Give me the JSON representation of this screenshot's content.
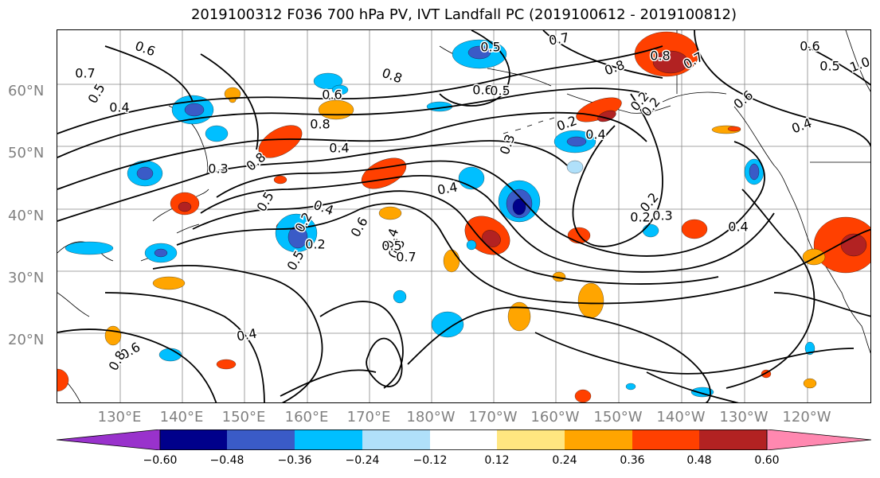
{
  "title": "2019100312 F036 700 hPa PV, IVT Landfall PC (2019100612 - 2019100812)",
  "lat_labels": [
    "60°N",
    "50°N",
    "40°N",
    "30°N",
    "20°N"
  ],
  "lon_labels": [
    "130°E",
    "140°E",
    "150°E",
    "160°E",
    "170°E",
    "180°W",
    "170°W",
    "160°W",
    "150°W",
    "140°W",
    "130°W",
    "120°W"
  ],
  "colorbar": {
    "colors": [
      "#9932cc",
      "#00008b",
      "#3a5bc7",
      "#00bfff",
      "#b0e0fa",
      "#ffffff",
      "#ffe680",
      "#ffa500",
      "#ff4000",
      "#b22222",
      "#ff88b0"
    ],
    "tick_labels": [
      "−0.60",
      "−0.48",
      "−0.36",
      "−0.24",
      "−0.12",
      "0.12",
      "0.24",
      "0.36",
      "0.48",
      "0.60"
    ]
  },
  "contour_labels": [
    "0.6",
    "0.7",
    "0.5",
    "0.4",
    "0.8",
    "0.6",
    "0.5",
    "0.7",
    "0.6",
    "0.8",
    "0.7",
    "0.6",
    "0.5",
    "1.0",
    "0.8",
    "0.6",
    "0.4",
    "0.3",
    "0.8",
    "0.4",
    "0.8",
    "0.5",
    "0.4",
    "0.4",
    "0.5",
    "0.3",
    "0.2",
    "0.2",
    "0.3",
    "0.4",
    "0.2",
    "0.2",
    "0.4",
    "0.2",
    "0.2",
    "0.2",
    "0.5",
    "0.4",
    "0.5",
    "0.7",
    "0.5",
    "0.6",
    "0.4",
    "0.6",
    "0.8"
  ]
}
